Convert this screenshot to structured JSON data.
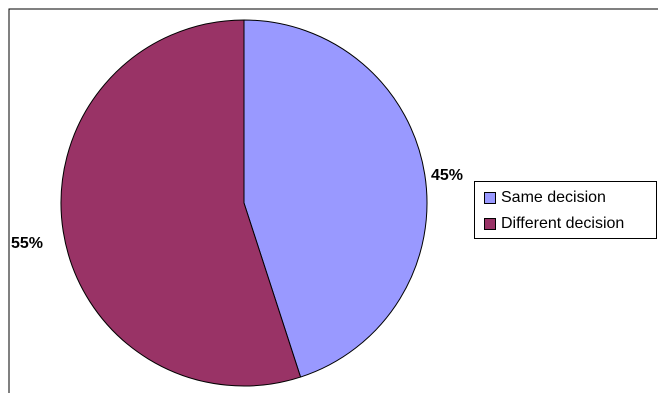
{
  "chart_data": {
    "type": "pie",
    "title": "",
    "series": [
      {
        "values": [
          45,
          55
        ]
      }
    ],
    "categories": [
      "Same decision",
      "Different decision"
    ],
    "slices": [
      {
        "label": "Same decision",
        "value": 45,
        "display": "45%",
        "color": "#9999ff"
      },
      {
        "label": "Different decision",
        "value": 55,
        "display": "55%",
        "color": "#993366"
      }
    ],
    "legend": {
      "position": "right",
      "entries": [
        "Same decision",
        "Different decision"
      ]
    },
    "start_angle": "top (12 o'clock), clockwise",
    "slice_border_color": "#000000"
  }
}
